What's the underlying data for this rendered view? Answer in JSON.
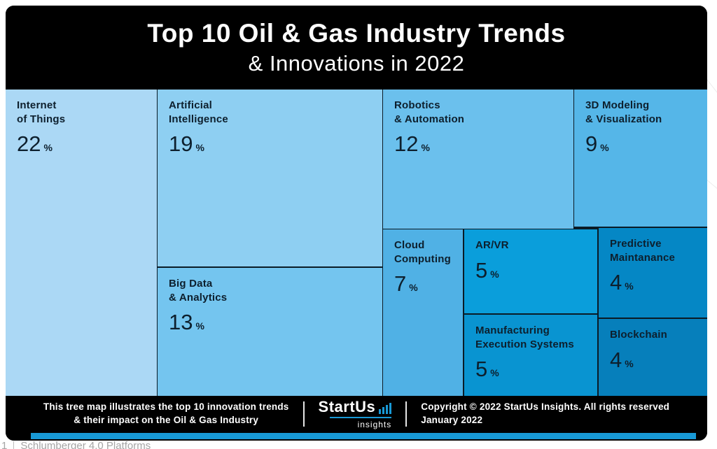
{
  "title": {
    "line1": "Top 10 Oil & Gas Industry Trends",
    "line2": "& Innovations in 2022"
  },
  "chart_data": {
    "type": "treemap",
    "title": "Top 10 Oil & Gas Industry Trends & Innovations in 2022",
    "unit": "%",
    "categories": [
      "Internet of Things",
      "Artificial Intelligence",
      "Big Data & Analytics",
      "Robotics & Automation",
      "3D Modeling & Visualization",
      "Cloud Computing",
      "AR/VR",
      "Manufacturing Execution Systems",
      "Predictive Maintanance",
      "Blockchain"
    ],
    "values": [
      22,
      19,
      13,
      12,
      9,
      7,
      5,
      5,
      4,
      4
    ],
    "cells": [
      {
        "id": "iot",
        "lines": [
          "Internet",
          "of Things"
        ],
        "value": 22,
        "color": "#abd8f5"
      },
      {
        "id": "ai",
        "lines": [
          "Artificial",
          "Intelligence"
        ],
        "value": 19,
        "color": "#8ecff2"
      },
      {
        "id": "bigdata",
        "lines": [
          "Big Data",
          "& Analytics"
        ],
        "value": 13,
        "color": "#74c5ef"
      },
      {
        "id": "robotics",
        "lines": [
          "Robotics",
          "& Automation"
        ],
        "value": 12,
        "color": "#6bc0ed"
      },
      {
        "id": "modeling3d",
        "lines": [
          "3D Modeling",
          "& Visualization"
        ],
        "value": 9,
        "color": "#55b6e8"
      },
      {
        "id": "cloud",
        "lines": [
          "Cloud",
          "Computing"
        ],
        "value": 7,
        "color": "#50b1e5"
      },
      {
        "id": "arvr",
        "lines": [
          "AR/VR"
        ],
        "value": 5,
        "color": "#0a9edb"
      },
      {
        "id": "mes",
        "lines": [
          "Manufacturing",
          "Execution Systems"
        ],
        "value": 5,
        "color": "#0994d1"
      },
      {
        "id": "predictive",
        "lines": [
          "Predictive",
          "Maintanance"
        ],
        "value": 4,
        "color": "#0587c5"
      },
      {
        "id": "blockchain",
        "lines": [
          "Blockchain"
        ],
        "value": 4,
        "color": "#067fbb"
      }
    ]
  },
  "footer": {
    "note_line1": "This tree map illustrates the top 10 innovation trends",
    "note_line2": "& their impact on the Oil & Gas Industry",
    "logo_word": "StartUs",
    "logo_sub": "insights",
    "copyright_line1": "Copyright © 2022 StartUs Insights. All rights reserved",
    "copyright_line2": "January 2022"
  },
  "page_bottom": {
    "index": "1",
    "label": "Schlumberger 4.0 Platforms"
  },
  "colors": {
    "accent_blue": "#1899d6",
    "card_background": "#000000",
    "cell_text": "#0d1f2d"
  }
}
